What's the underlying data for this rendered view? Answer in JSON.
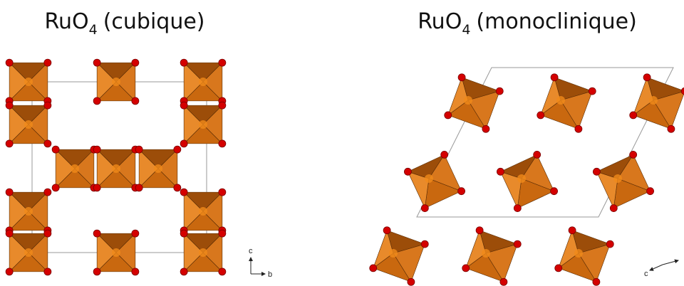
{
  "panels": [
    {
      "title": {
        "formula": "RuO",
        "subscript": "4",
        "name": "(cubique)"
      },
      "axes": {
        "vertical": "c",
        "horizontal": "b"
      }
    },
    {
      "title": {
        "formula": "RuO",
        "subscript": "4",
        "name": "(monoclinique)"
      },
      "axes": {
        "vertical": "c"
      }
    }
  ]
}
